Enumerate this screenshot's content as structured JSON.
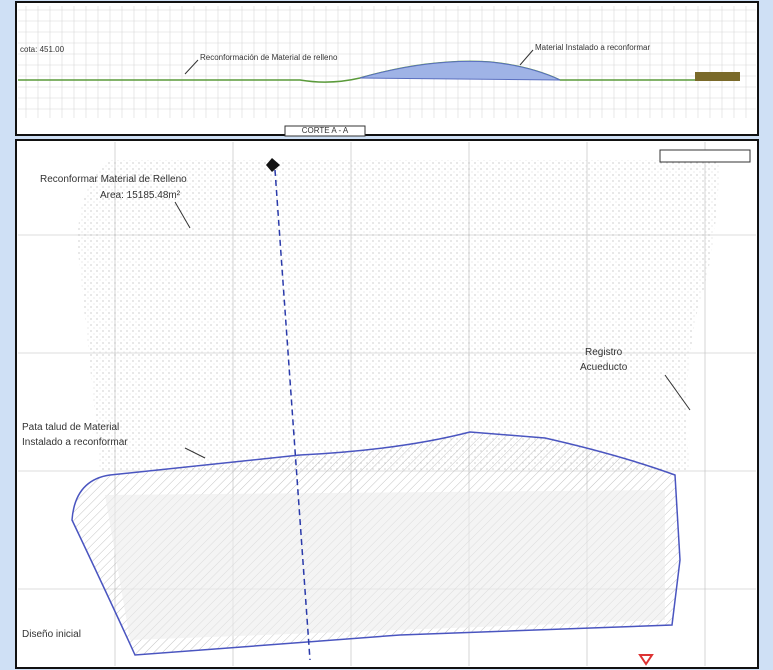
{
  "section": {
    "elevation_label": "cota: 451.00",
    "fill_label": "Reconformación de Material de relleno",
    "installed_label": "Material Instalado a reconformar",
    "title": "CORTE A - A"
  },
  "plan": {
    "fill_title": "Reconformar Material de Relleno",
    "fill_area": "Area: 15185.48m²",
    "toe_line_1": "Pata talud de Material",
    "toe_line_2": "Instalado a reconformar",
    "registry_1": "Registro",
    "registry_2": "Acueducto",
    "initial_design": "Diseño inicial"
  }
}
